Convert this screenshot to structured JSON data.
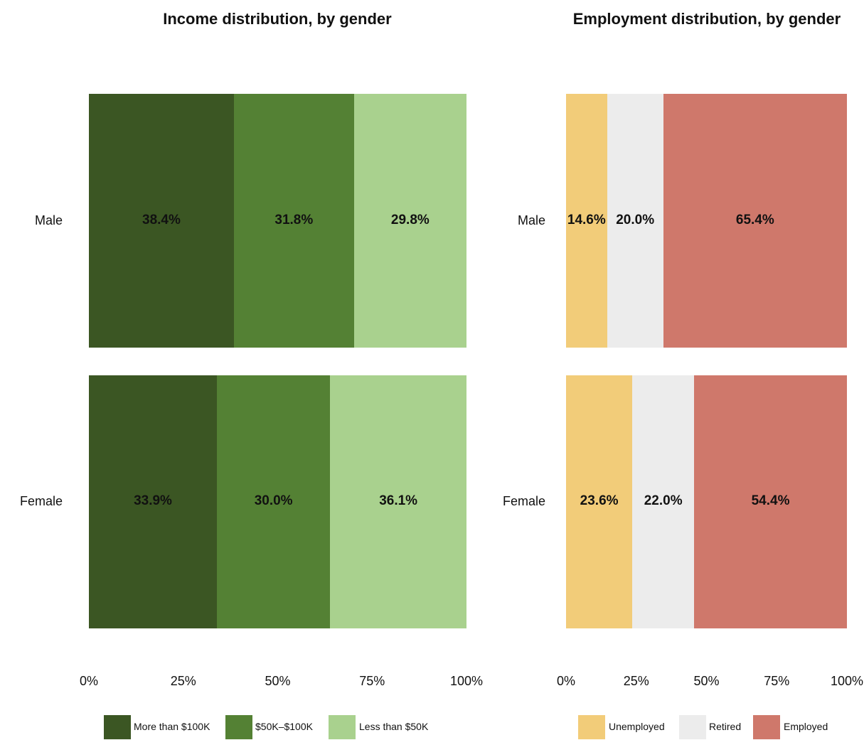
{
  "chart_data": [
    {
      "type": "bar",
      "orientation": "horizontal",
      "stacked": "percent",
      "title": "Income distribution, by gender",
      "categories": [
        "Male",
        "Female"
      ],
      "series": [
        {
          "name": "More than $100K",
          "values": [
            38.4,
            33.9
          ],
          "labels": [
            "38.4%",
            "33.9%"
          ],
          "color": "#3b5623"
        },
        {
          "name": "$50K–$100K",
          "values": [
            31.8,
            30.0
          ],
          "labels": [
            "31.8%",
            "30.0%"
          ],
          "color": "#548134"
        },
        {
          "name": "Less than $50K",
          "values": [
            29.8,
            36.1
          ],
          "labels": [
            "29.8%",
            "36.1%"
          ],
          "color": "#a9d18e"
        }
      ],
      "xticks": [
        "0%",
        "25%",
        "50%",
        "75%",
        "100%"
      ],
      "xlim": [
        0,
        100
      ],
      "legend": "bottom"
    },
    {
      "type": "bar",
      "orientation": "horizontal",
      "stacked": "percent",
      "title": "Employment distribution, by gender",
      "categories": [
        "Male",
        "Female"
      ],
      "series": [
        {
          "name": "Unemployed",
          "values": [
            14.6,
            23.6
          ],
          "labels": [
            "14.6%",
            "23.6%"
          ],
          "color": "#f2cc79"
        },
        {
          "name": "Retired",
          "values": [
            20.0,
            22.0
          ],
          "labels": [
            "20.0%",
            "22.0%"
          ],
          "color": "#ececec"
        },
        {
          "name": "Employed",
          "values": [
            65.4,
            54.4
          ],
          "labels": [
            "65.4%",
            "54.4%"
          ],
          "color": "#cf786b"
        }
      ],
      "xticks": [
        "0%",
        "25%",
        "50%",
        "75%",
        "100%"
      ],
      "xlim": [
        0,
        100
      ],
      "legend": "bottom"
    }
  ]
}
